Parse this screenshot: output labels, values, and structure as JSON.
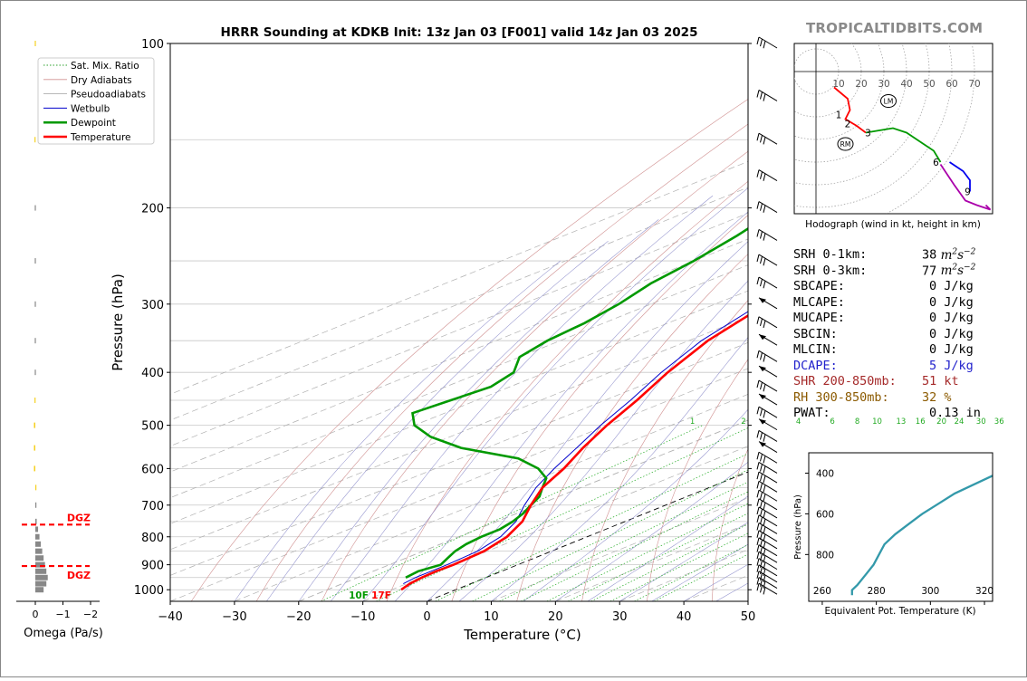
{
  "site_name": "TROPICALTIDBITS.COM",
  "chart_data": {
    "type": "skew-t",
    "title": "HRRR Sounding at KDKB Init: 13z Jan 03 [F001] valid 14z Jan 03 2025",
    "xlabel": "Temperature (°C)",
    "ylabel": "Pressure (hPa)",
    "xlim": [
      -40,
      50
    ],
    "ylim_hpa": [
      1050,
      100
    ],
    "x_ticks": [
      "−40",
      "−30",
      "−20",
      "−10",
      "0",
      "10",
      "20",
      "30",
      "40",
      "50"
    ],
    "y_ticks": [
      "100",
      "200",
      "300",
      "400",
      "500",
      "600",
      "700",
      "800",
      "900",
      "1000"
    ],
    "legend": {
      "placement": "top-left",
      "entries": [
        {
          "label": "Sat. Mix. Ratio",
          "color": "#2ca02c",
          "style": "dotted"
        },
        {
          "label": "Dry Adiabats",
          "color": "#d09090",
          "style": "solid-thin"
        },
        {
          "label": "Pseudoadiabats",
          "color": "#a0a0a0",
          "style": "solid-thin"
        },
        {
          "label": "Wetbulb",
          "color": "#0000cc",
          "style": "solid"
        },
        {
          "label": "Dewpoint",
          "color": "#009900",
          "style": "solid-thick"
        },
        {
          "label": "Temperature",
          "color": "#ff0000",
          "style": "solid-thick"
        }
      ]
    },
    "surface_labels": {
      "dewpoint": "10F",
      "temperature": "17F"
    },
    "mixing_ratio_labels": [
      "1",
      "2",
      "4",
      "6",
      "8",
      "10",
      "13",
      "16",
      "20",
      "24",
      "30",
      "36"
    ],
    "temperature": {
      "p": [
        1000,
        975,
        950,
        925,
        900,
        850,
        800,
        750,
        700,
        650,
        600,
        550,
        500,
        450,
        400,
        350,
        300,
        250,
        200,
        175,
        150,
        125,
        100
      ],
      "t": [
        -8.5,
        -9.5,
        -10,
        -10.2,
        -10,
        -10.5,
        -12.5,
        -16,
        -21,
        -26,
        -30,
        -35,
        -40,
        -45,
        -51,
        -57,
        -62,
        -68,
        -75,
        -79,
        -86,
        -93,
        -100
      ]
    },
    "wetbulb": {
      "p": [
        975,
        950,
        925,
        900,
        850,
        800,
        750,
        700,
        650,
        600,
        550,
        500,
        450,
        400,
        350,
        300,
        250,
        200,
        175,
        150,
        125,
        100
      ],
      "t": [
        -10.5,
        -11,
        -11,
        -11,
        -11.5,
        -13.5,
        -17,
        -22,
        -27,
        -31.5,
        -36,
        -41,
        -46,
        -52,
        -58,
        -63,
        -69,
        -76,
        -80,
        -87,
        -94,
        -101
      ]
    },
    "dewpoint": {
      "p": [
        950,
        925,
        900,
        875,
        850,
        825,
        800,
        775,
        750,
        725,
        700,
        675,
        650,
        625,
        600,
        575,
        550,
        525,
        500,
        475,
        450,
        425,
        400,
        375,
        350,
        325,
        300,
        275,
        250,
        225,
        200,
        175,
        150,
        125,
        100
      ],
      "t": [
        -12.5,
        -13,
        -12,
        -13.5,
        -15,
        -16,
        -16.5,
        -16.5,
        -17.5,
        -19,
        -21,
        -23,
        -26,
        -29,
        -34,
        -41,
        -54,
        -63,
        -70,
        -75,
        -74,
        -73,
        -75,
        -80,
        -82,
        -83,
        -85,
        -88,
        -90,
        -93,
        -97,
        -102,
        -108,
        -114,
        -118
      ]
    },
    "winds_p": [
      1000,
      975,
      950,
      925,
      900,
      875,
      850,
      825,
      800,
      775,
      750,
      725,
      700,
      675,
      650,
      625,
      600,
      575,
      550,
      525,
      500,
      475,
      450,
      425,
      400,
      375,
      350,
      325,
      300,
      275,
      250,
      225,
      200,
      175,
      150,
      125,
      100
    ],
    "dgz_label": "DGZ",
    "dgz_p": [
      760,
      905
    ],
    "omega": {
      "xlabel": "Omega (Pa/s)",
      "x_ticks": [
        "0",
        "−1",
        "−2"
      ],
      "p": [
        1000,
        975,
        950,
        925,
        900,
        875,
        850,
        825,
        800,
        775,
        750,
        700,
        650,
        600,
        550,
        500,
        450,
        400,
        350,
        300,
        250,
        200,
        150,
        100
      ],
      "values": [
        -0.3,
        -0.4,
        -0.45,
        -0.4,
        -0.35,
        -0.3,
        -0.25,
        -0.2,
        -0.15,
        -0.1,
        -0.05,
        -0.02,
        0,
        0.05,
        0.05,
        0.05,
        0.03,
        0.02,
        0.02,
        0.02,
        0.02,
        0.02,
        0.03,
        0.02
      ],
      "colors": [
        "#888888",
        "#888888",
        "#888888",
        "#888888",
        "#888888",
        "#888888",
        "#888888",
        "#888888",
        "#888888",
        "#888888",
        "#888888",
        "#888888",
        "#f5d020",
        "#f5d020",
        "#f5d020",
        "#f5d020",
        "#f5d020",
        "#888888",
        "#888888",
        "#888888",
        "#888888",
        "#888888",
        "#f5d020",
        "#f5d020"
      ]
    },
    "hodograph": {
      "caption": "Hodograph (wind in kt, height in km)",
      "ring_labels": [
        "10",
        "20",
        "30",
        "40",
        "50",
        "60",
        "70"
      ],
      "height_labels": [
        "1",
        "2",
        "3",
        "6",
        "9"
      ],
      "lm_label": "LM",
      "rm_label": "RM",
      "segments": [
        {
          "color": "#ff0000",
          "points": [
            [
              8,
              -7
            ],
            [
              14,
              -12
            ],
            [
              15,
              -17
            ],
            [
              13,
              -21
            ],
            [
              18,
              -24
            ],
            [
              22,
              -27
            ]
          ]
        },
        {
          "color": "#009900",
          "points": [
            [
              22,
              -27
            ],
            [
              28,
              -26
            ],
            [
              34,
              -25
            ],
            [
              40,
              -27
            ],
            [
              46,
              -31
            ],
            [
              52,
              -35
            ],
            [
              55,
              -40
            ]
          ]
        },
        {
          "color": "#0000ee",
          "points": [
            [
              59,
              -40
            ],
            [
              65,
              -44
            ],
            [
              68,
              -48
            ],
            [
              68,
              -53
            ]
          ]
        },
        {
          "color": "#aa00aa",
          "points": [
            [
              55,
              -41
            ],
            [
              61,
              -50
            ],
            [
              66,
              -57
            ],
            [
              71,
              -59
            ],
            [
              77,
              -61
            ],
            [
              75,
              -59
            ]
          ]
        }
      ],
      "height_marker_points": [
        [
          12,
          -19
        ],
        [
          16,
          -23
        ],
        [
          25,
          -27
        ],
        [
          55,
          -40
        ],
        [
          69,
          -53
        ]
      ],
      "lm": [
        32,
        -13
      ],
      "rm": [
        13,
        -32
      ]
    },
    "theta_e_profile": {
      "xlabel": "Equivalent Pot. Temperature (K)",
      "ylabel": "Pressure (hPa)",
      "x_ticks": [
        "260",
        "280",
        "300",
        "320"
      ],
      "y_ticks": [
        "400",
        "600",
        "800"
      ],
      "xlim": [
        255,
        323
      ],
      "ylim": [
        1030,
        300
      ],
      "theta_e": [
        271,
        271,
        273,
        276,
        279,
        281,
        283,
        287,
        292,
        297,
        303,
        309,
        317,
        325
      ],
      "p": [
        1000,
        975,
        950,
        900,
        850,
        800,
        750,
        700,
        650,
        600,
        550,
        500,
        450,
        400
      ]
    }
  },
  "stats": [
    {
      "label": "SRH 0-1km:",
      "value": "38",
      "unit_base": "m",
      "unit_sup1": "2",
      "unit_mid": "s",
      "unit_sup2": "−2",
      "color": "#000000"
    },
    {
      "label": "SRH 0-3km:",
      "value": "77",
      "unit_base": "m",
      "unit_sup1": "2",
      "unit_mid": "s",
      "unit_sup2": "−2",
      "color": "#000000"
    },
    {
      "label": "SBCAPE:",
      "value": "0 J/kg",
      "color": "#000000"
    },
    {
      "label": "MLCAPE:",
      "value": "0 J/kg",
      "color": "#000000"
    },
    {
      "label": "MUCAPE:",
      "value": "0 J/kg",
      "color": "#000000"
    },
    {
      "label": "SBCIN:",
      "value": "0 J/kg",
      "color": "#000000"
    },
    {
      "label": "MLCIN:",
      "value": "0 J/kg",
      "color": "#000000"
    },
    {
      "label": "DCAPE:",
      "value": "5 J/kg",
      "color": "#2222cc"
    },
    {
      "label": "SHR 200-850mb:",
      "value": "51 kt",
      "color": "#a52a2a"
    },
    {
      "label": "RH 300-850mb:",
      "value": "32 %",
      "color": "#8b5a00"
    },
    {
      "label": "PWAT:",
      "value": "0.13 in",
      "color": "#000000"
    }
  ]
}
